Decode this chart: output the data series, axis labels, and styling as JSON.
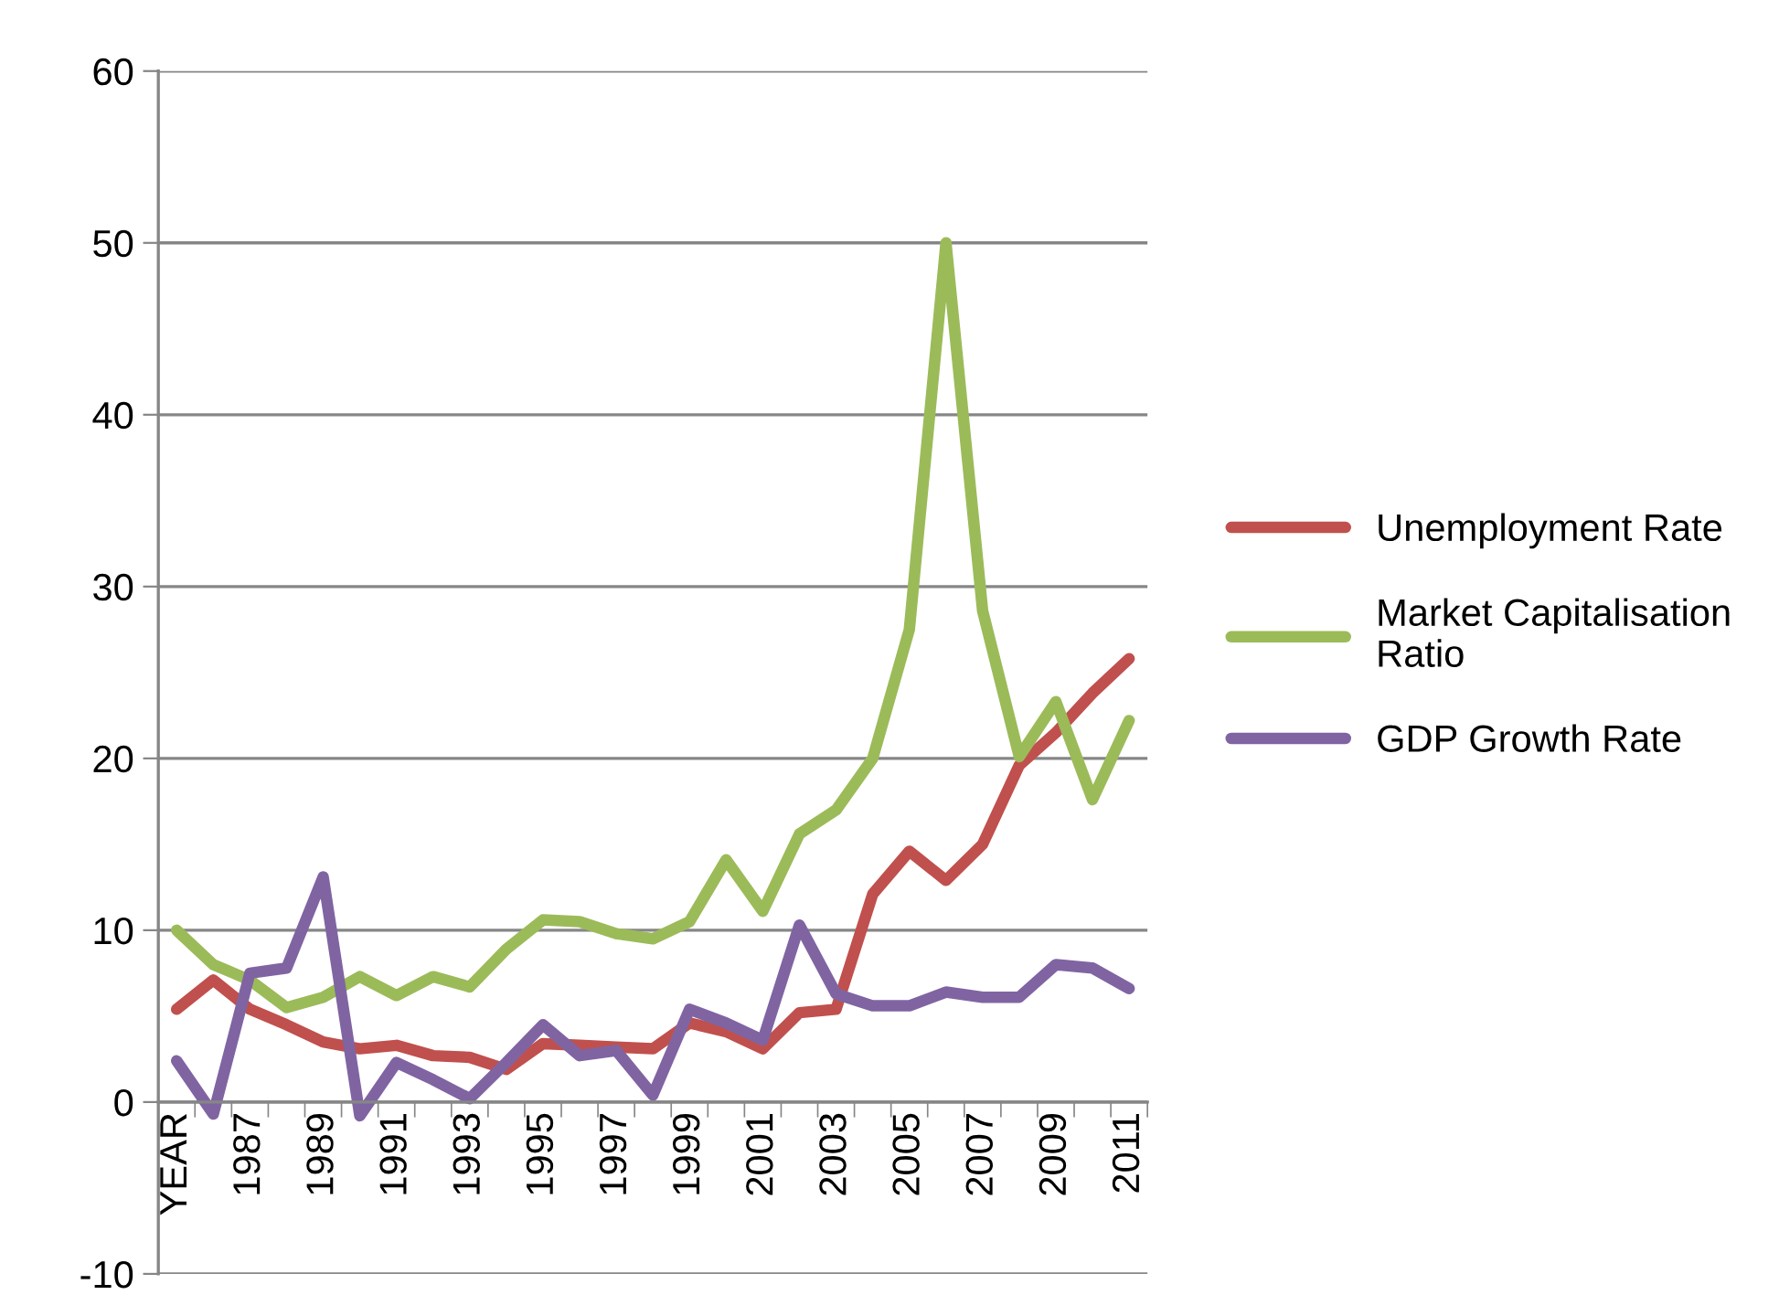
{
  "chart_data": {
    "type": "line",
    "categories": [
      "YEAR",
      null,
      "1987",
      null,
      "1989",
      null,
      "1991",
      null,
      "1993",
      null,
      "1995",
      null,
      "1997",
      null,
      "1999",
      null,
      "2001",
      null,
      "2003",
      null,
      "2005",
      null,
      "2007",
      null,
      "2009",
      null,
      "2011"
    ],
    "series": [
      {
        "name": "Unemployment Rate",
        "color": "#c0504d",
        "values": [
          5.4,
          7.1,
          5.4,
          4.5,
          3.5,
          3.1,
          3.3,
          2.7,
          2.6,
          1.9,
          3.4,
          3.3,
          3.2,
          3.1,
          4.6,
          4.1,
          3.1,
          5.2,
          5.4,
          12.1,
          14.6,
          12.9,
          15.0,
          19.6,
          21.5,
          23.8,
          25.8
        ]
      },
      {
        "name": "Market Capitalisation Ratio",
        "color": "#9bbb59",
        "values": [
          10.0,
          8.0,
          7.1,
          5.5,
          6.1,
          7.3,
          6.2,
          7.3,
          6.7,
          8.9,
          10.6,
          10.5,
          9.8,
          9.5,
          10.5,
          14.1,
          11.1,
          15.6,
          17.0,
          20.0,
          27.5,
          50.0,
          28.6,
          20.1,
          23.3,
          17.6,
          22.2
        ]
      },
      {
        "name": "GDP Growth Rate",
        "color": "#8064a2",
        "values": [
          2.4,
          -0.7,
          7.5,
          7.8,
          13.1,
          -0.8,
          2.3,
          1.3,
          0.2,
          2.3,
          4.5,
          2.7,
          3.0,
          0.4,
          5.4,
          4.6,
          3.6,
          10.3,
          6.3,
          5.6,
          5.6,
          6.4,
          6.1,
          6.1,
          8.0,
          7.8,
          6.6
        ]
      }
    ],
    "ylim": [
      -10,
      60
    ],
    "yticks": [
      -10,
      0,
      10,
      20,
      30,
      40,
      50,
      60
    ],
    "grid": "y",
    "legend": "right",
    "marker": "none",
    "line_style": "solid"
  }
}
